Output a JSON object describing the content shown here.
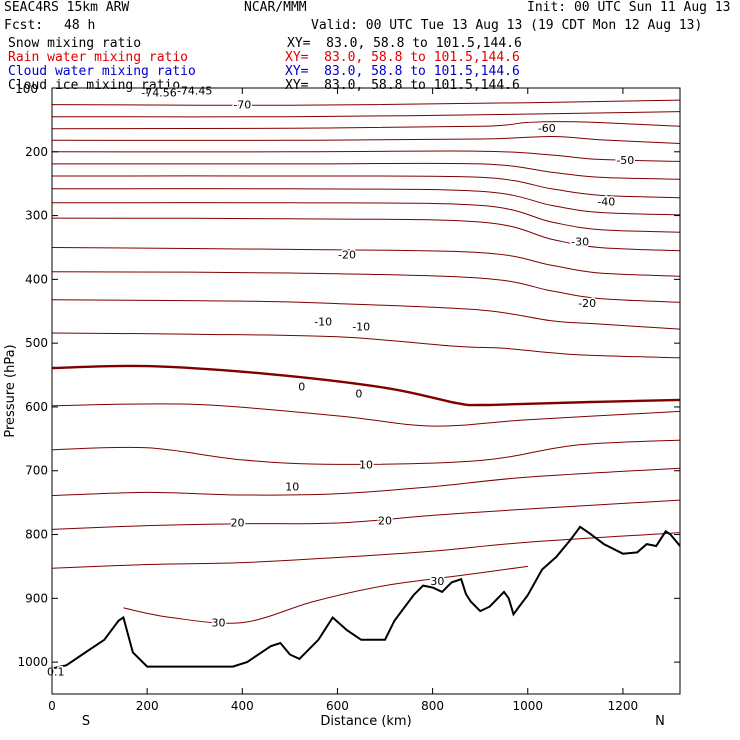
{
  "header": {
    "model": "SEAC4RS 15km ARW",
    "org": "NCAR/MMM",
    "init": "Init: 00 UTC Sun 11 Aug 13",
    "fcst_label": "Fcst:",
    "fcst_value": "48 h",
    "valid": "Valid: 00 UTC Tue 13 Aug 13 (19 CDT Mon 12 Aug 13)"
  },
  "fields": [
    {
      "name": "Snow mixing ratio",
      "xy": "XY=  83.0, 58.8 to 101.5,144.6",
      "color": "#000000"
    },
    {
      "name": "Rain water mixing ratio",
      "xy": "XY=  83.0, 58.8 to 101.5,144.6",
      "color": "#e00000"
    },
    {
      "name": "Cloud water mixing ratio",
      "xy": "XY=  83.0, 58.8 to 101.5,144.6",
      "color": "#0000c8"
    },
    {
      "name": "Cloud ice mixing ratio",
      "xy": "XY=  83.0, 58.8 to 101.5,144.6",
      "color": "#000000"
    }
  ],
  "chart_data": {
    "type": "line",
    "xlabel": "Distance (km)",
    "ylabel": "Pressure (hPa)",
    "xlim": [
      0,
      1320
    ],
    "ylim": [
      1050,
      100
    ],
    "x_ticks": [
      0,
      200,
      400,
      600,
      800,
      1000,
      1200
    ],
    "y_ticks": [
      200,
      300,
      400,
      500,
      600,
      700,
      800,
      900,
      1000
    ],
    "y_tick_top_label": "100",
    "start_label": "S",
    "end_label": "N",
    "contour_color": "#800000",
    "terrain_color": "#000000",
    "contour_interval_C": 5,
    "contour_labels": [
      {
        "text": "-74.56",
        "x": 225,
        "p": 107
      },
      {
        "text": "-74.45",
        "x": 300,
        "p": 104
      },
      {
        "text": "-70",
        "x": 400,
        "p": 126
      },
      {
        "text": "-60",
        "x": 1040,
        "p": 163
      },
      {
        "text": "-50",
        "x": 1205,
        "p": 213
      },
      {
        "text": "-40",
        "x": 1165,
        "p": 278
      },
      {
        "text": "-30",
        "x": 1110,
        "p": 341
      },
      {
        "text": "-20",
        "x": 620,
        "p": 361
      },
      {
        "text": "-20",
        "x": 1125,
        "p": 437
      },
      {
        "text": "-10",
        "x": 570,
        "p": 466
      },
      {
        "text": "-10",
        "x": 650,
        "p": 474
      },
      {
        "text": "0",
        "x": 525,
        "p": 568
      },
      {
        "text": "0",
        "x": 645,
        "p": 579
      },
      {
        "text": "10",
        "x": 505,
        "p": 725
      },
      {
        "text": "10",
        "x": 660,
        "p": 690
      },
      {
        "text": "20",
        "x": 390,
        "p": 781
      },
      {
        "text": "20",
        "x": 700,
        "p": 778
      },
      {
        "text": "30",
        "x": 350,
        "p": 938
      },
      {
        "text": "30",
        "x": 810,
        "p": 873
      },
      {
        "text": "0.1",
        "x": 8,
        "p": 1015
      }
    ],
    "series": [
      {
        "level": -70,
        "x": [
          0,
          500,
          1000,
          1320
        ],
        "y": [
          126,
          127,
          123,
          119
        ]
      },
      {
        "level": -65,
        "x": [
          0,
          500,
          900,
          1320
        ],
        "y": [
          145,
          145,
          142,
          137
        ]
      },
      {
        "level": -60,
        "x": [
          0,
          500,
          900,
          1000,
          1100,
          1320
        ],
        "y": [
          164,
          163,
          160,
          154,
          153,
          160
        ]
      },
      {
        "level": -55,
        "x": [
          0,
          500,
          900,
          1050,
          1150,
          1320
        ],
        "y": [
          182,
          182,
          180,
          176,
          181,
          187
        ]
      },
      {
        "level": -50,
        "x": [
          0,
          500,
          900,
          1050,
          1150,
          1320
        ],
        "y": [
          200,
          200,
          199,
          205,
          212,
          215
        ]
      },
      {
        "level": -45,
        "x": [
          0,
          500,
          900,
          1050,
          1150,
          1320
        ],
        "y": [
          219,
          219,
          219,
          232,
          240,
          243
        ]
      },
      {
        "level": -40,
        "x": [
          0,
          500,
          900,
          1050,
          1150,
          1320
        ],
        "y": [
          238,
          238,
          240,
          258,
          268,
          272
        ]
      },
      {
        "level": -35,
        "x": [
          0,
          500,
          900,
          1050,
          1150,
          1320
        ],
        "y": [
          258,
          258,
          262,
          284,
          295,
          299
        ]
      },
      {
        "level": -30,
        "x": [
          0,
          500,
          900,
          1050,
          1150,
          1320
        ],
        "y": [
          280,
          280,
          284,
          310,
          322,
          326
        ]
      },
      {
        "level": -25,
        "x": [
          0,
          500,
          900,
          1050,
          1150,
          1320
        ],
        "y": [
          304,
          305,
          310,
          337,
          350,
          355
        ]
      },
      {
        "level": -20,
        "x": [
          0,
          500,
          900,
          1050,
          1150,
          1320
        ],
        "y": [
          350,
          353,
          358,
          378,
          390,
          395
        ]
      },
      {
        "level": -15,
        "x": [
          0,
          500,
          900,
          1050,
          1150,
          1320
        ],
        "y": [
          388,
          390,
          398,
          418,
          430,
          436
        ]
      },
      {
        "level": -10,
        "x": [
          0,
          400,
          600,
          900,
          1050,
          1150,
          1320
        ],
        "y": [
          432,
          434,
          438,
          448,
          465,
          470,
          478
        ]
      },
      {
        "level": -5,
        "x": [
          0,
          300,
          600,
          850,
          950,
          1100,
          1320
        ],
        "y": [
          484,
          486,
          490,
          505,
          508,
          518,
          523
        ]
      },
      {
        "level": 0,
        "x": [
          0,
          200,
          450,
          700,
          850,
          900,
          1000,
          1150,
          1320
        ],
        "y": [
          539,
          536,
          548,
          570,
          594,
          597,
          595,
          592,
          589
        ]
      },
      {
        "level": 5,
        "x": [
          0,
          300,
          600,
          800,
          1000,
          1320
        ],
        "y": [
          598,
          596,
          614,
          630,
          620,
          607
        ]
      },
      {
        "level": 10,
        "x": [
          0,
          200,
          400,
          600,
          900,
          1100,
          1320
        ],
        "y": [
          667,
          664,
          683,
          690,
          684,
          660,
          652
        ]
      },
      {
        "level": 15,
        "x": [
          0,
          200,
          400,
          600,
          800,
          1000,
          1320
        ],
        "y": [
          739,
          734,
          738,
          736,
          725,
          710,
          696
        ]
      },
      {
        "level": 20,
        "x": [
          0,
          200,
          400,
          600,
          800,
          1000,
          1320
        ],
        "y": [
          792,
          786,
          783,
          782,
          770,
          760,
          746
        ]
      },
      {
        "level": 25,
        "x": [
          0,
          200,
          400,
          600,
          800,
          1000,
          1320
        ],
        "y": [
          853,
          847,
          844,
          836,
          826,
          812,
          797
        ]
      },
      {
        "level": 30,
        "x": [
          150,
          250,
          400,
          550,
          700,
          850,
          1000
        ],
        "y": [
          915,
          930,
          938,
          905,
          880,
          865,
          850
        ]
      }
    ],
    "terrain": {
      "x": [
        0,
        30,
        70,
        110,
        140,
        150,
        170,
        200,
        260,
        320,
        380,
        410,
        460,
        480,
        500,
        520,
        560,
        590,
        620,
        650,
        700,
        720,
        760,
        780,
        800,
        820,
        840,
        860,
        870,
        880,
        900,
        920,
        950,
        960,
        970,
        980,
        1000,
        1030,
        1060,
        1090,
        1110,
        1130,
        1160,
        1200,
        1230,
        1250,
        1270,
        1290,
        1300,
        1320
      ],
      "y": [
        1010,
        1005,
        985,
        965,
        935,
        930,
        985,
        1007,
        1007,
        1007,
        1007,
        1000,
        975,
        970,
        988,
        995,
        965,
        930,
        950,
        965,
        965,
        935,
        895,
        880,
        883,
        890,
        875,
        870,
        893,
        905,
        920,
        913,
        890,
        900,
        925,
        915,
        895,
        855,
        835,
        808,
        788,
        798,
        815,
        830,
        828,
        815,
        818,
        795,
        800,
        818
      ]
    }
  }
}
